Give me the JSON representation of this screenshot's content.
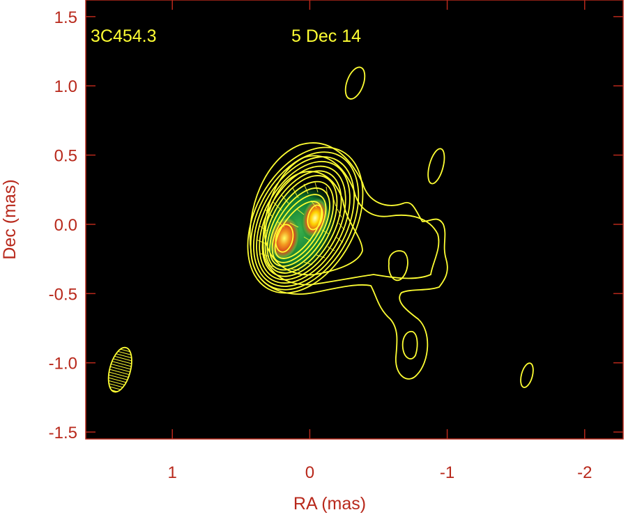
{
  "chart_data": {
    "type": "heatmap",
    "title": "",
    "xlabel": "RA (mas)",
    "ylabel": "Dec (mas)",
    "xlim": [
      1.63,
      -2.28
    ],
    "ylim": [
      -1.55,
      1.62
    ],
    "x_ticks": [
      1,
      0,
      -1,
      -2
    ],
    "x_tick_labels": [
      "1",
      "0",
      "-1",
      "-2"
    ],
    "y_ticks": [
      1.5,
      1.0,
      0.5,
      0.0,
      -0.5,
      -1.0,
      -1.5
    ],
    "y_tick_labels": [
      "1.5",
      "1.0",
      "0.5",
      "0.0",
      "-0.5",
      "-1.0",
      "-1.5"
    ],
    "annotations": {
      "source": "3C454.3",
      "date": "5 Dec 14"
    },
    "components": [
      {
        "name_hint": "core-west",
        "x": 0.2,
        "y": -0.1,
        "peak": "red"
      },
      {
        "name_hint": "core-east",
        "x": -0.03,
        "y": 0.05,
        "peak": "yellow"
      }
    ],
    "outer_features": [
      {
        "x": -0.33,
        "y": 1.02,
        "rx": 0.06,
        "ry": 0.12,
        "angle": 20
      },
      {
        "x": -0.92,
        "y": 0.42,
        "rx": 0.05,
        "ry": 0.13,
        "angle": 15
      },
      {
        "x": -1.58,
        "y": -1.09,
        "rx": 0.04,
        "ry": 0.09,
        "angle": 15
      }
    ],
    "beam": {
      "x": 1.38,
      "y": -1.05,
      "major_mas": 0.33,
      "minor_mas": 0.15,
      "pa_deg": 15
    },
    "grid": false,
    "colors": {
      "background": "#000000",
      "contour": "#ffff33",
      "axes": "#b8281b",
      "image_colormap": [
        "#0a7a2a",
        "#35b04a",
        "#c8d020",
        "#e89a1a",
        "#d8461a",
        "#ffff80"
      ]
    }
  }
}
